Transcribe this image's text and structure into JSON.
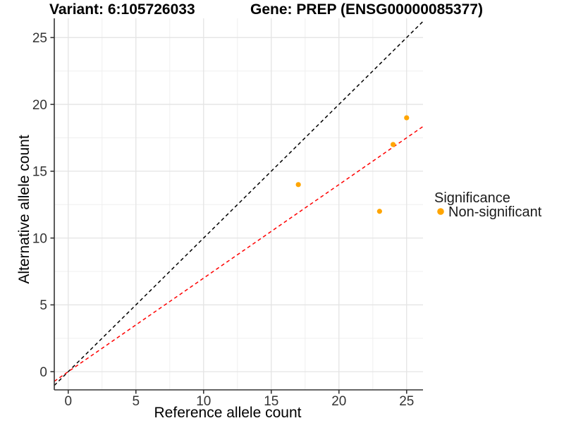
{
  "title": {
    "variant": "Variant: 6:105726033",
    "gene": "Gene: PREP (ENSG00000085377)"
  },
  "axes": {
    "x": {
      "label": "Reference allele count",
      "ticks": [
        0,
        5,
        10,
        15,
        20,
        25
      ],
      "minor_ticks": [
        2.5,
        7.5,
        12.5,
        17.5,
        22.5
      ]
    },
    "y": {
      "label": "Alternative allele count",
      "ticks": [
        0,
        5,
        10,
        15,
        20,
        25
      ],
      "minor_ticks": [
        2.5,
        7.5,
        12.5,
        17.5,
        22.5
      ]
    }
  },
  "legend": {
    "title": "Significance",
    "items": [
      {
        "label": "Non-significant",
        "color": "#FFA500"
      }
    ]
  },
  "chart_data": {
    "type": "scatter",
    "title": "Variant: 6:105726033   Gene: PREP (ENSG00000085377)",
    "xlabel": "Reference allele count",
    "ylabel": "Alternative allele count",
    "xlim": [
      -1.03,
      26.21
    ],
    "ylim": [
      -1.36,
      26.44
    ],
    "grid": true,
    "legend_position": "right",
    "series": [
      {
        "name": "Non-significant",
        "color": "#FFA500",
        "points": [
          {
            "x": 17,
            "y": 14
          },
          {
            "x": 23,
            "y": 12
          },
          {
            "x": 24,
            "y": 17
          },
          {
            "x": 25,
            "y": 19
          }
        ]
      }
    ],
    "reference_lines": [
      {
        "name": "identity-line",
        "slope": 1.0,
        "intercept": 0,
        "color": "#000000"
      },
      {
        "name": "expected-ratio-line",
        "slope": 0.7,
        "intercept": 0,
        "color": "#FF0000"
      }
    ]
  }
}
